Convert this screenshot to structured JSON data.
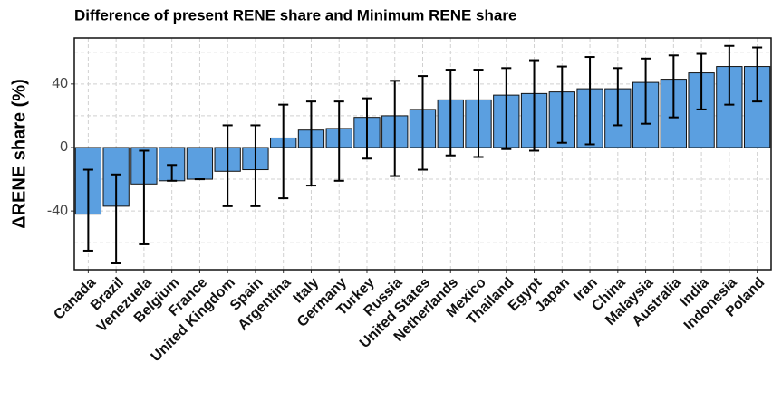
{
  "chart_data": {
    "type": "bar",
    "title": "Difference of present RENE share and Minimum RENE share",
    "y_label": "ΔRENE share (%)",
    "categories": [
      "Canada",
      "Brazil",
      "Venezuela",
      "Belgium",
      "France",
      "United Kingdom",
      "Spain",
      "Argentina",
      "Italy",
      "Germany",
      "Turkey",
      "Russia",
      "United States",
      "Netherlands",
      "Mexico",
      "Thailand",
      "Egypt",
      "Japan",
      "Iran",
      "China",
      "Malaysia",
      "Australia",
      "India",
      "Indonesia",
      "Poland"
    ],
    "values": [
      -42,
      -37,
      -23,
      -21,
      -20,
      -15,
      -14,
      6,
      11,
      12,
      19,
      20,
      24,
      30,
      30,
      33,
      34,
      35,
      37,
      37,
      41,
      43,
      47,
      51,
      51
    ],
    "error_lower": [
      -65,
      -73,
      -61,
      -21,
      -20,
      -37,
      -37,
      -32,
      -24,
      -21,
      -7,
      -18,
      -14,
      -5,
      -6,
      -1,
      -2,
      3,
      2,
      14,
      15,
      19,
      24,
      27,
      29
    ],
    "error_upper": [
      -14,
      -17,
      -2,
      -11,
      -20,
      14,
      14,
      27,
      29,
      29,
      31,
      42,
      45,
      49,
      49,
      50,
      55,
      51,
      57,
      50,
      56,
      58,
      59,
      64,
      63
    ],
    "color": "#5b9fe0",
    "ylim": [
      -77,
      69
    ],
    "yticks": [
      -40,
      0,
      40
    ],
    "minor_yticks": [
      -60,
      -20,
      20,
      60
    ],
    "grid": true
  }
}
